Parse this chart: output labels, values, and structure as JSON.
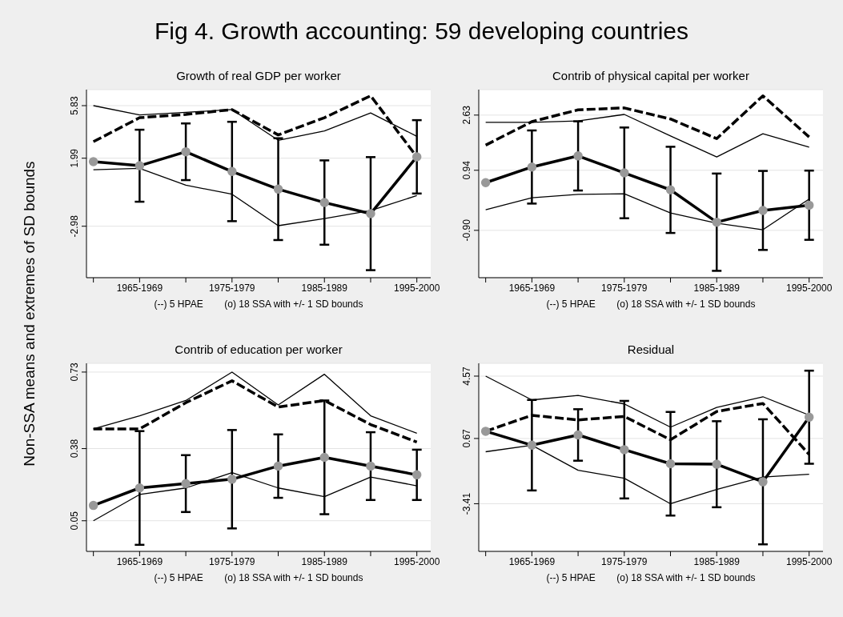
{
  "chart_data": [
    {
      "type": "line",
      "title": "Growth of real GDP per worker",
      "ylabel": "Non-SSA means and extremes of SD bounds",
      "xlabel": "(--) 5 HPAE        (o) 18 SSA with +/- 1 SD bounds",
      "annotations": [
        "Fig 4. Growth accounting: 59 developing countries"
      ],
      "categories": [
        null,
        "1965-1969",
        null,
        "1975-1979",
        null,
        "1985-1989",
        null,
        "1995-2000"
      ],
      "ylim": [
        -6.74,
        7.0
      ],
      "yticks": [
        -2.98,
        1.99,
        5.83
      ],
      "grid": "y",
      "series": [
        {
          "color": "#000000",
          "line_style": "solid",
          "marker": "none",
          "values": [
            5.83,
            5.15,
            5.34,
            5.54,
            3.3,
            3.98,
            5.3,
            3.59
          ]
        },
        {
          "color": "#000000",
          "line_style": "solid",
          "marker": "none",
          "values": [
            1.15,
            1.25,
            0.02,
            -0.64,
            -2.94,
            -2.42,
            -1.83,
            -0.74
          ]
        },
        {
          "color": "#000000",
          "line_style": "dashed",
          "marker": "none",
          "values": [
            3.2,
            4.95,
            5.19,
            5.54,
            3.69,
            4.95,
            6.55,
            2.09
          ]
        },
        {
          "color": "#000000",
          "line_style": "solid",
          "marker": "circle",
          "values": [
            1.74,
            1.44,
            2.46,
            1.02,
            -0.27,
            -1.25,
            -2.06,
            2.09
          ],
          "errors": [
            null,
            2.63,
            2.07,
            3.63,
            3.72,
            3.08,
            4.13,
            2.68
          ]
        }
      ]
    },
    {
      "type": "line",
      "title": "Contrib of physical capital per worker",
      "xlabel": "(--) 5 HPAE        (o) 18 SSA with +/- 1 SD bounds",
      "categories": [
        null,
        "1965-1969",
        null,
        "1975-1979",
        null,
        "1985-1989",
        null,
        "1995-2000"
      ],
      "ylim": [
        -2.35,
        3.41
      ],
      "yticks": [
        {
          "value": -0.9,
          "label": "-0.90"
        },
        0.94,
        2.63
      ],
      "grid": "y",
      "series": [
        {
          "color": "#000000",
          "line_style": "solid",
          "marker": "none",
          "values": [
            2.41,
            2.41,
            2.45,
            2.65,
            1.99,
            1.35,
            2.06,
            1.65
          ]
        },
        {
          "color": "#000000",
          "line_style": "solid",
          "marker": "none",
          "values": [
            -0.27,
            0.1,
            0.2,
            0.22,
            -0.37,
            -0.68,
            -0.88,
            0.06
          ]
        },
        {
          "color": "#000000",
          "line_style": "dashed",
          "marker": "none",
          "values": [
            1.71,
            2.43,
            2.79,
            2.85,
            2.51,
            1.91,
            3.22,
            1.96
          ]
        },
        {
          "color": "#000000",
          "line_style": "solid",
          "marker": "circle",
          "values": [
            0.56,
            1.04,
            1.38,
            0.86,
            0.34,
            -0.65,
            -0.29,
            -0.13
          ],
          "errors": [
            null,
            1.12,
            1.06,
            1.39,
            1.32,
            1.49,
            1.21,
            1.06
          ]
        }
      ]
    },
    {
      "type": "line",
      "title": "Contrib of education per worker",
      "xlabel": "(--) 5 HPAE        (o) 18 SSA with +/- 1 SD bounds",
      "categories": [
        null,
        "1965-1969",
        null,
        "1975-1979",
        null,
        "1985-1989",
        null,
        "1995-2000"
      ],
      "ylim": [
        -0.09,
        0.77
      ],
      "yticks": [
        0.05,
        0.38,
        0.73
      ],
      "grid": "y",
      "series": [
        {
          "color": "#000000",
          "line_style": "solid",
          "marker": "none",
          "values": [
            0.47,
            0.53,
            0.6,
            0.73,
            0.58,
            0.72,
            0.53,
            0.45
          ]
        },
        {
          "color": "#000000",
          "line_style": "solid",
          "marker": "none",
          "values": [
            0.05,
            0.17,
            0.2,
            0.27,
            0.2,
            0.16,
            0.25,
            0.21
          ]
        },
        {
          "color": "#000000",
          "line_style": "dashed",
          "marker": "none",
          "values": [
            0.47,
            0.47,
            0.59,
            0.69,
            0.57,
            0.6,
            0.49,
            0.41
          ]
        },
        {
          "color": "#000000",
          "line_style": "solid",
          "marker": "circle",
          "values": [
            0.12,
            0.2,
            0.22,
            0.24,
            0.3,
            0.34,
            0.3,
            0.26
          ],
          "errors": [
            null,
            0.26,
            0.13,
            0.225,
            0.145,
            0.26,
            0.155,
            0.115
          ]
        }
      ]
    },
    {
      "type": "line",
      "title": "Residual",
      "xlabel": "(--) 5 HPAE        (o) 18 SSA with +/- 1 SD bounds",
      "categories": [
        null,
        "1965-1969",
        null,
        "1975-1979",
        null,
        "1985-1989",
        null,
        "1995-2000"
      ],
      "ylim": [
        -6.39,
        5.37
      ],
      "yticks": [
        -3.41,
        0.67,
        4.57
      ],
      "grid": "y",
      "series": [
        {
          "color": "#000000",
          "line_style": "solid",
          "marker": "none",
          "values": [
            4.57,
            3.08,
            3.36,
            2.83,
            1.38,
            2.61,
            3.28,
            2.13
          ]
        },
        {
          "color": "#000000",
          "line_style": "solid",
          "marker": "none",
          "values": [
            -0.16,
            0.25,
            -1.32,
            -1.82,
            -3.41,
            -2.52,
            -1.74,
            -1.57
          ]
        },
        {
          "color": "#000000",
          "line_style": "dashed",
          "marker": "none",
          "values": [
            1.12,
            2.12,
            1.83,
            2.05,
            0.59,
            2.36,
            2.86,
            -0.33
          ]
        },
        {
          "color": "#000000",
          "line_style": "solid",
          "marker": "circle",
          "values": [
            1.12,
            0.25,
            0.89,
            -0.03,
            -0.91,
            -0.94,
            -2.04,
            2.0
          ],
          "errors": [
            null,
            2.83,
            1.61,
            3.05,
            3.24,
            2.69,
            3.91,
            2.91
          ]
        }
      ]
    }
  ]
}
